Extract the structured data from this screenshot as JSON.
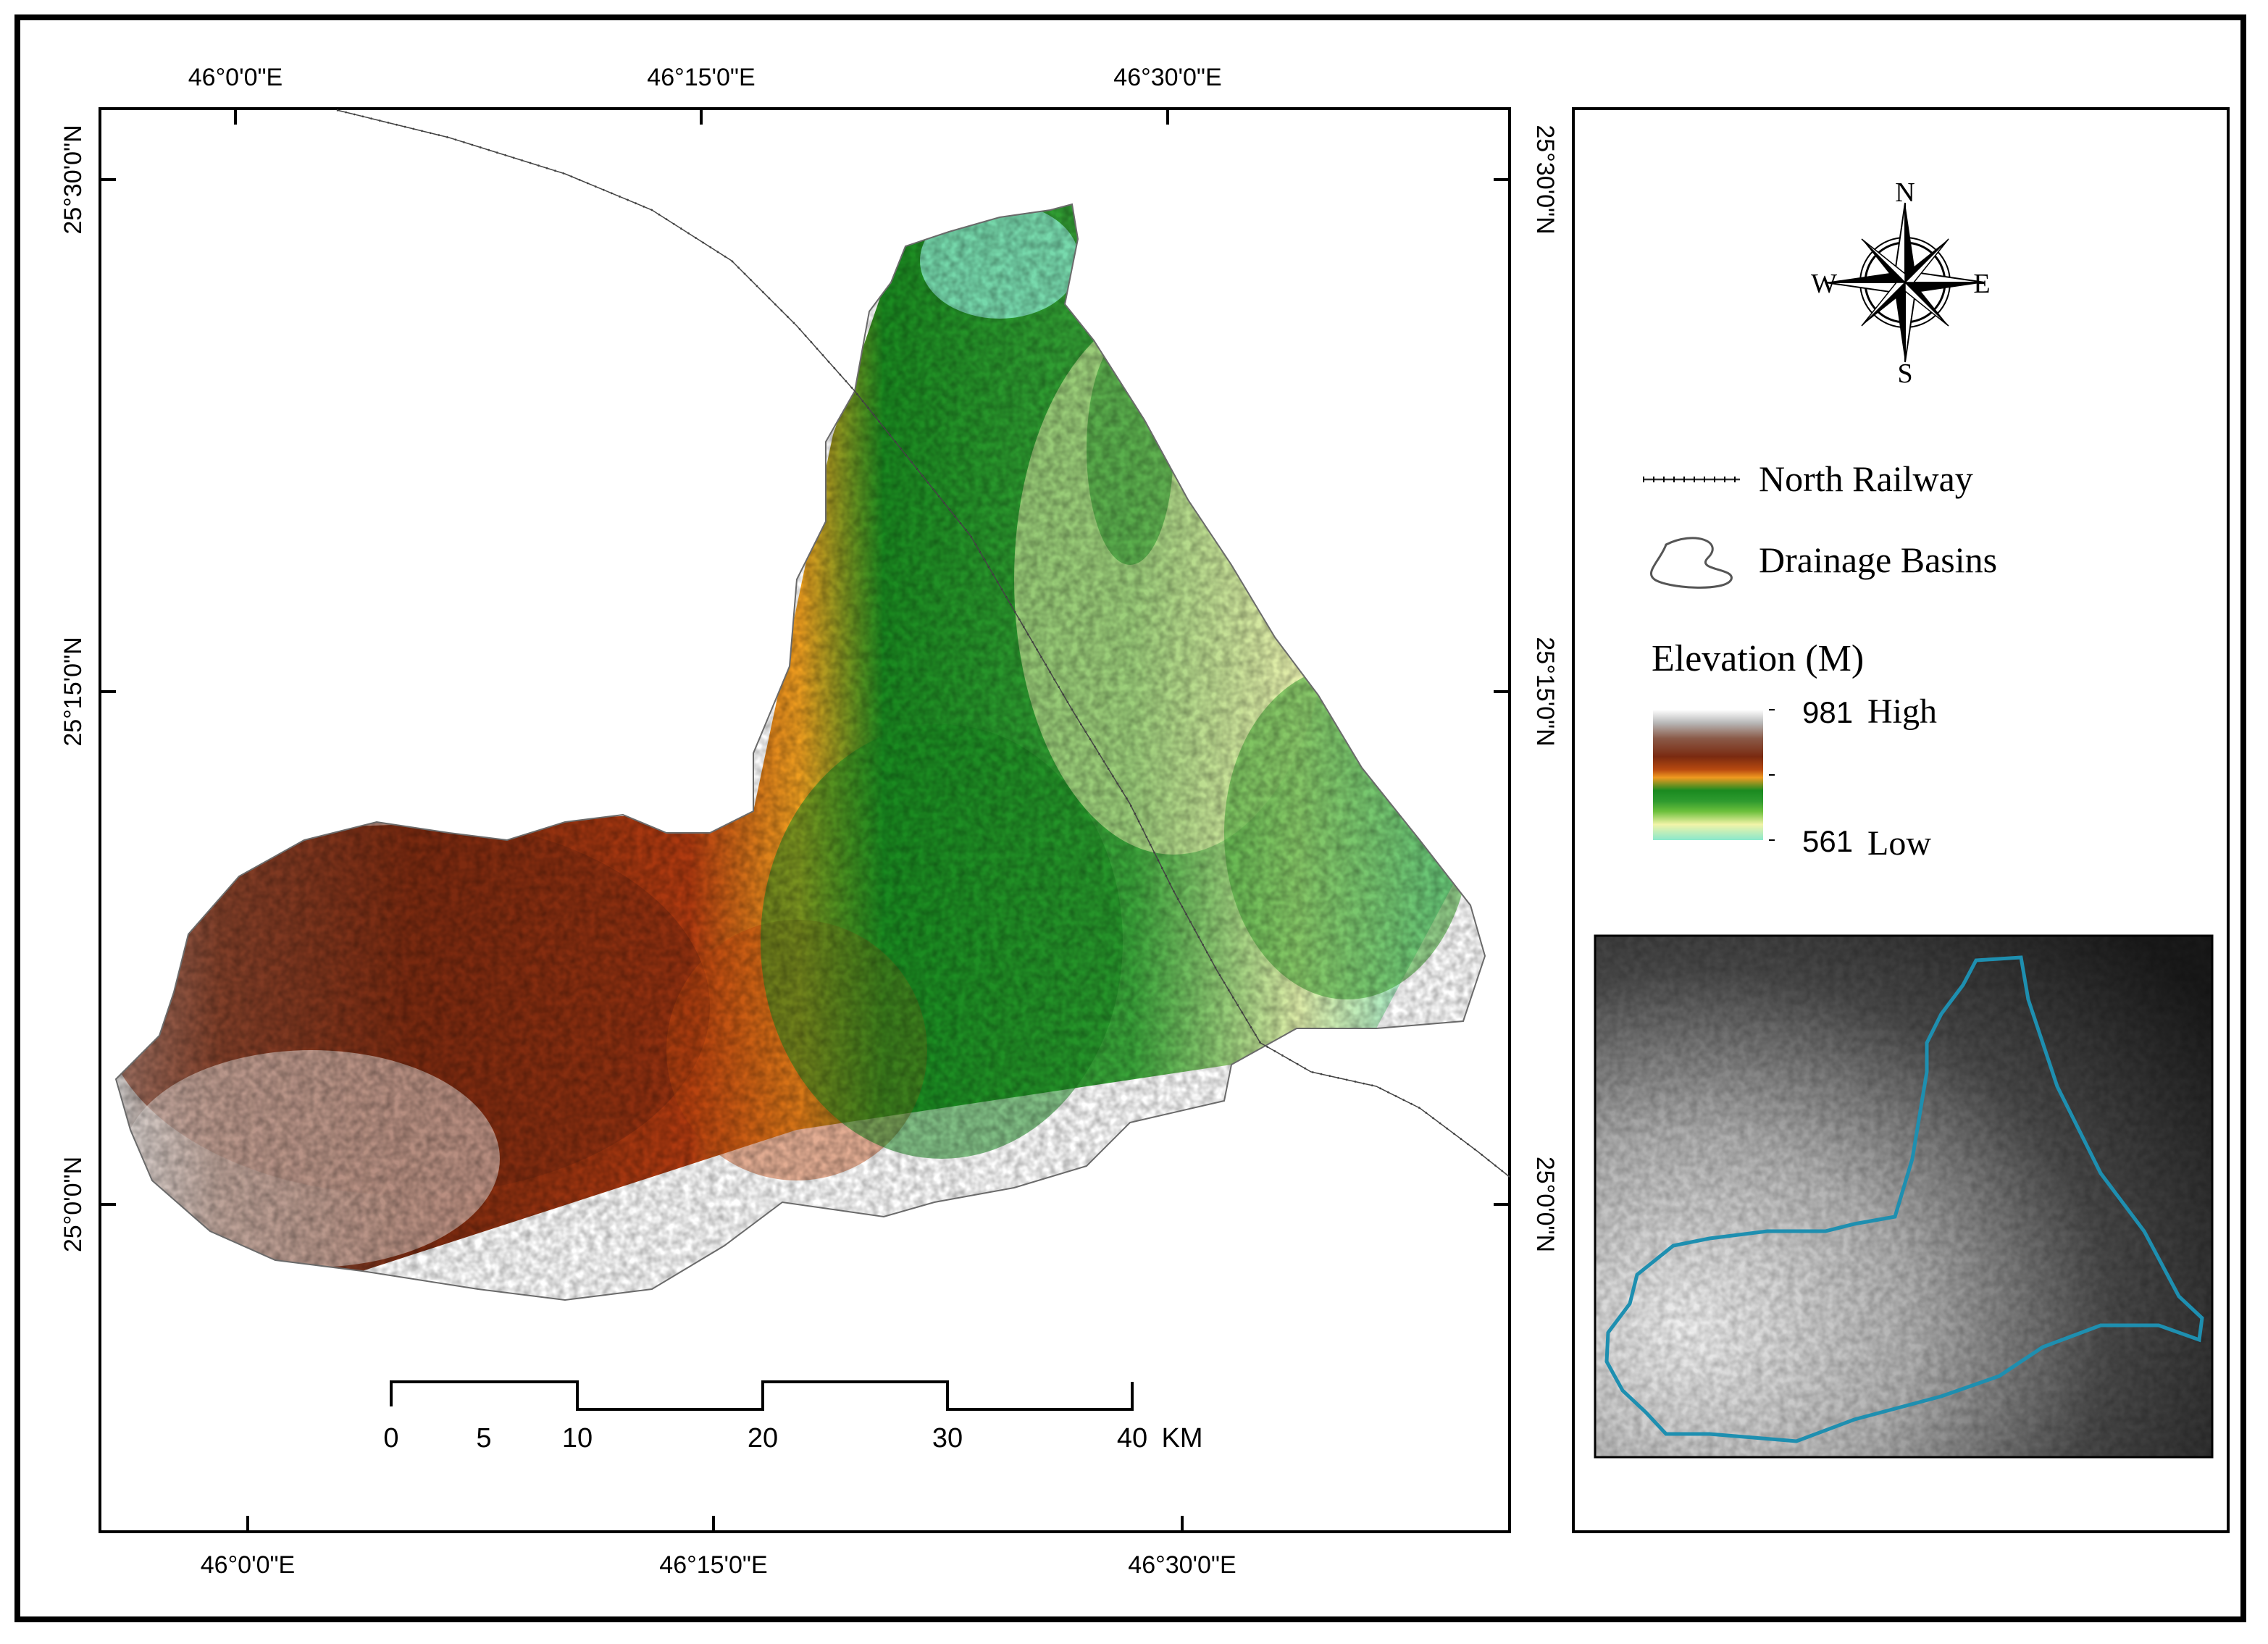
{
  "map": {
    "top_longitude_labels": [
      "46°0'0\"E",
      "46°15'0\"E",
      "46°30'0\"E"
    ],
    "bottom_longitude_labels": [
      "46°0'0\"E",
      "46°15'0\"E",
      "46°30'0\"E"
    ],
    "left_latitude_labels": [
      "25°30'0\"N",
      "25°15'0\"N",
      "25°0'0\"N"
    ],
    "right_latitude_labels": [
      "25°30'0\"N",
      "25°15'0\"N",
      "25°0'0\"N"
    ],
    "scale_bar": {
      "ticks": [
        "0",
        "5",
        "10",
        "20",
        "30",
        "40"
      ],
      "unit": "KM"
    }
  },
  "legend": {
    "compass": {
      "n": "N",
      "s": "S",
      "e": "E",
      "w": "W"
    },
    "railway_label": "North Railway",
    "basins_label": "Drainage Basins",
    "elevation_title": "Elevation (M)",
    "high_value": "981",
    "high_label": "High",
    "low_value": "561",
    "low_label": "Low",
    "colors": {
      "ramp": [
        "#ffffff",
        "#a0a0a0",
        "#7a2a10",
        "#b84a10",
        "#f09a20",
        "#1a8a20",
        "#6cc03c",
        "#f2f4a8",
        "#8ae8cc"
      ],
      "inset_outline": "#1e8fb0"
    }
  }
}
